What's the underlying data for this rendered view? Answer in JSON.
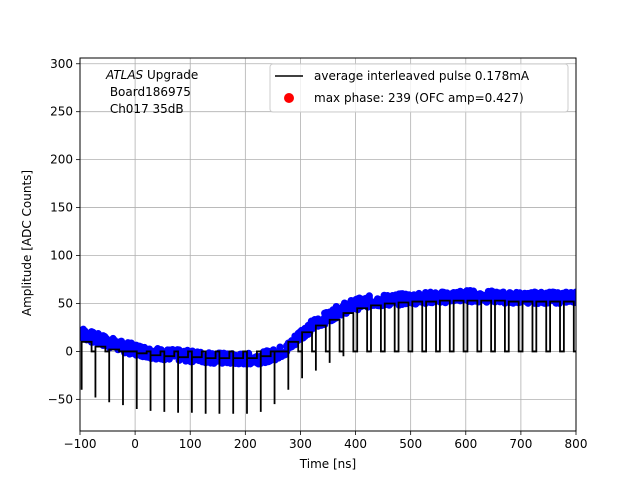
{
  "chart_data": {
    "type": "line",
    "annotation": {
      "atlas": "ATLAS",
      "upgrade": " Upgrade",
      "board": " Board186975",
      "channel": " Ch017 35dB"
    },
    "xlabel": "Time [ns]",
    "ylabel": "Amplitude [ADC Counts]",
    "xlim": [
      -100,
      800
    ],
    "ylim": [
      -83,
      306
    ],
    "xticks": [
      -100,
      0,
      100,
      200,
      300,
      400,
      500,
      600,
      700,
      800
    ],
    "yticks": [
      -50,
      0,
      50,
      100,
      150,
      200,
      250,
      300
    ],
    "grid": true,
    "legend_position": "upper right",
    "series": [
      {
        "name": "average interleaved pulse 0.178mA",
        "kind": "line",
        "color": "#000000",
        "period_ns": 25,
        "pulse_high_width_ns": 18,
        "baseline": 0,
        "x": [
          -97,
          -72,
          -47,
          -22,
          3,
          28,
          53,
          78,
          103,
          128,
          153,
          178,
          203,
          228,
          253,
          278,
          303,
          328,
          353,
          378,
          403,
          428,
          453,
          478,
          503,
          528,
          553,
          578,
          603,
          628,
          653,
          678,
          703,
          728,
          753,
          778
        ],
        "y": [
          -40,
          -48,
          -53,
          -56,
          -60,
          -62,
          -63,
          -64,
          -64,
          -65,
          -65,
          -65,
          -65,
          -63,
          -55,
          -40,
          -28,
          -20,
          -12,
          -5,
          10,
          22,
          30,
          36,
          40,
          43,
          45,
          46,
          47,
          47,
          47,
          47,
          46,
          46,
          45,
          45
        ],
        "peak_y": [
          10,
          5,
          2,
          0,
          -2,
          -4,
          -5,
          -6,
          -6,
          -7,
          -7,
          -7,
          -7,
          -5,
          0,
          10,
          20,
          27,
          33,
          40,
          45,
          48,
          50,
          51,
          52,
          52,
          53,
          53,
          53,
          53,
          53,
          52,
          52,
          52,
          52,
          52
        ]
      },
      {
        "name": "max phase: 239 (OFC amp=0.427)",
        "kind": "scatter",
        "color": "#ff0000",
        "x": [],
        "y": []
      },
      {
        "name": "",
        "kind": "scatter",
        "color": "#0000ff",
        "x": [
          -100,
          -75,
          -50,
          -25,
          0,
          25,
          50,
          75,
          100,
          125,
          150,
          175,
          200,
          225,
          250,
          275,
          300,
          325,
          350,
          375,
          400,
          425,
          450,
          475,
          500,
          525,
          550,
          575,
          600,
          625,
          650,
          675,
          700,
          725,
          750,
          775,
          800
        ],
        "y": [
          20,
          14,
          10,
          5,
          2,
          -1,
          -3,
          -4,
          -5,
          -6,
          -7,
          -8,
          -8,
          -7,
          -4,
          2,
          18,
          28,
          36,
          44,
          49,
          52,
          53,
          54,
          55,
          56,
          56,
          57,
          58,
          57,
          57,
          56,
          56,
          56,
          56,
          56,
          57
        ],
        "spread": 6
      }
    ]
  }
}
